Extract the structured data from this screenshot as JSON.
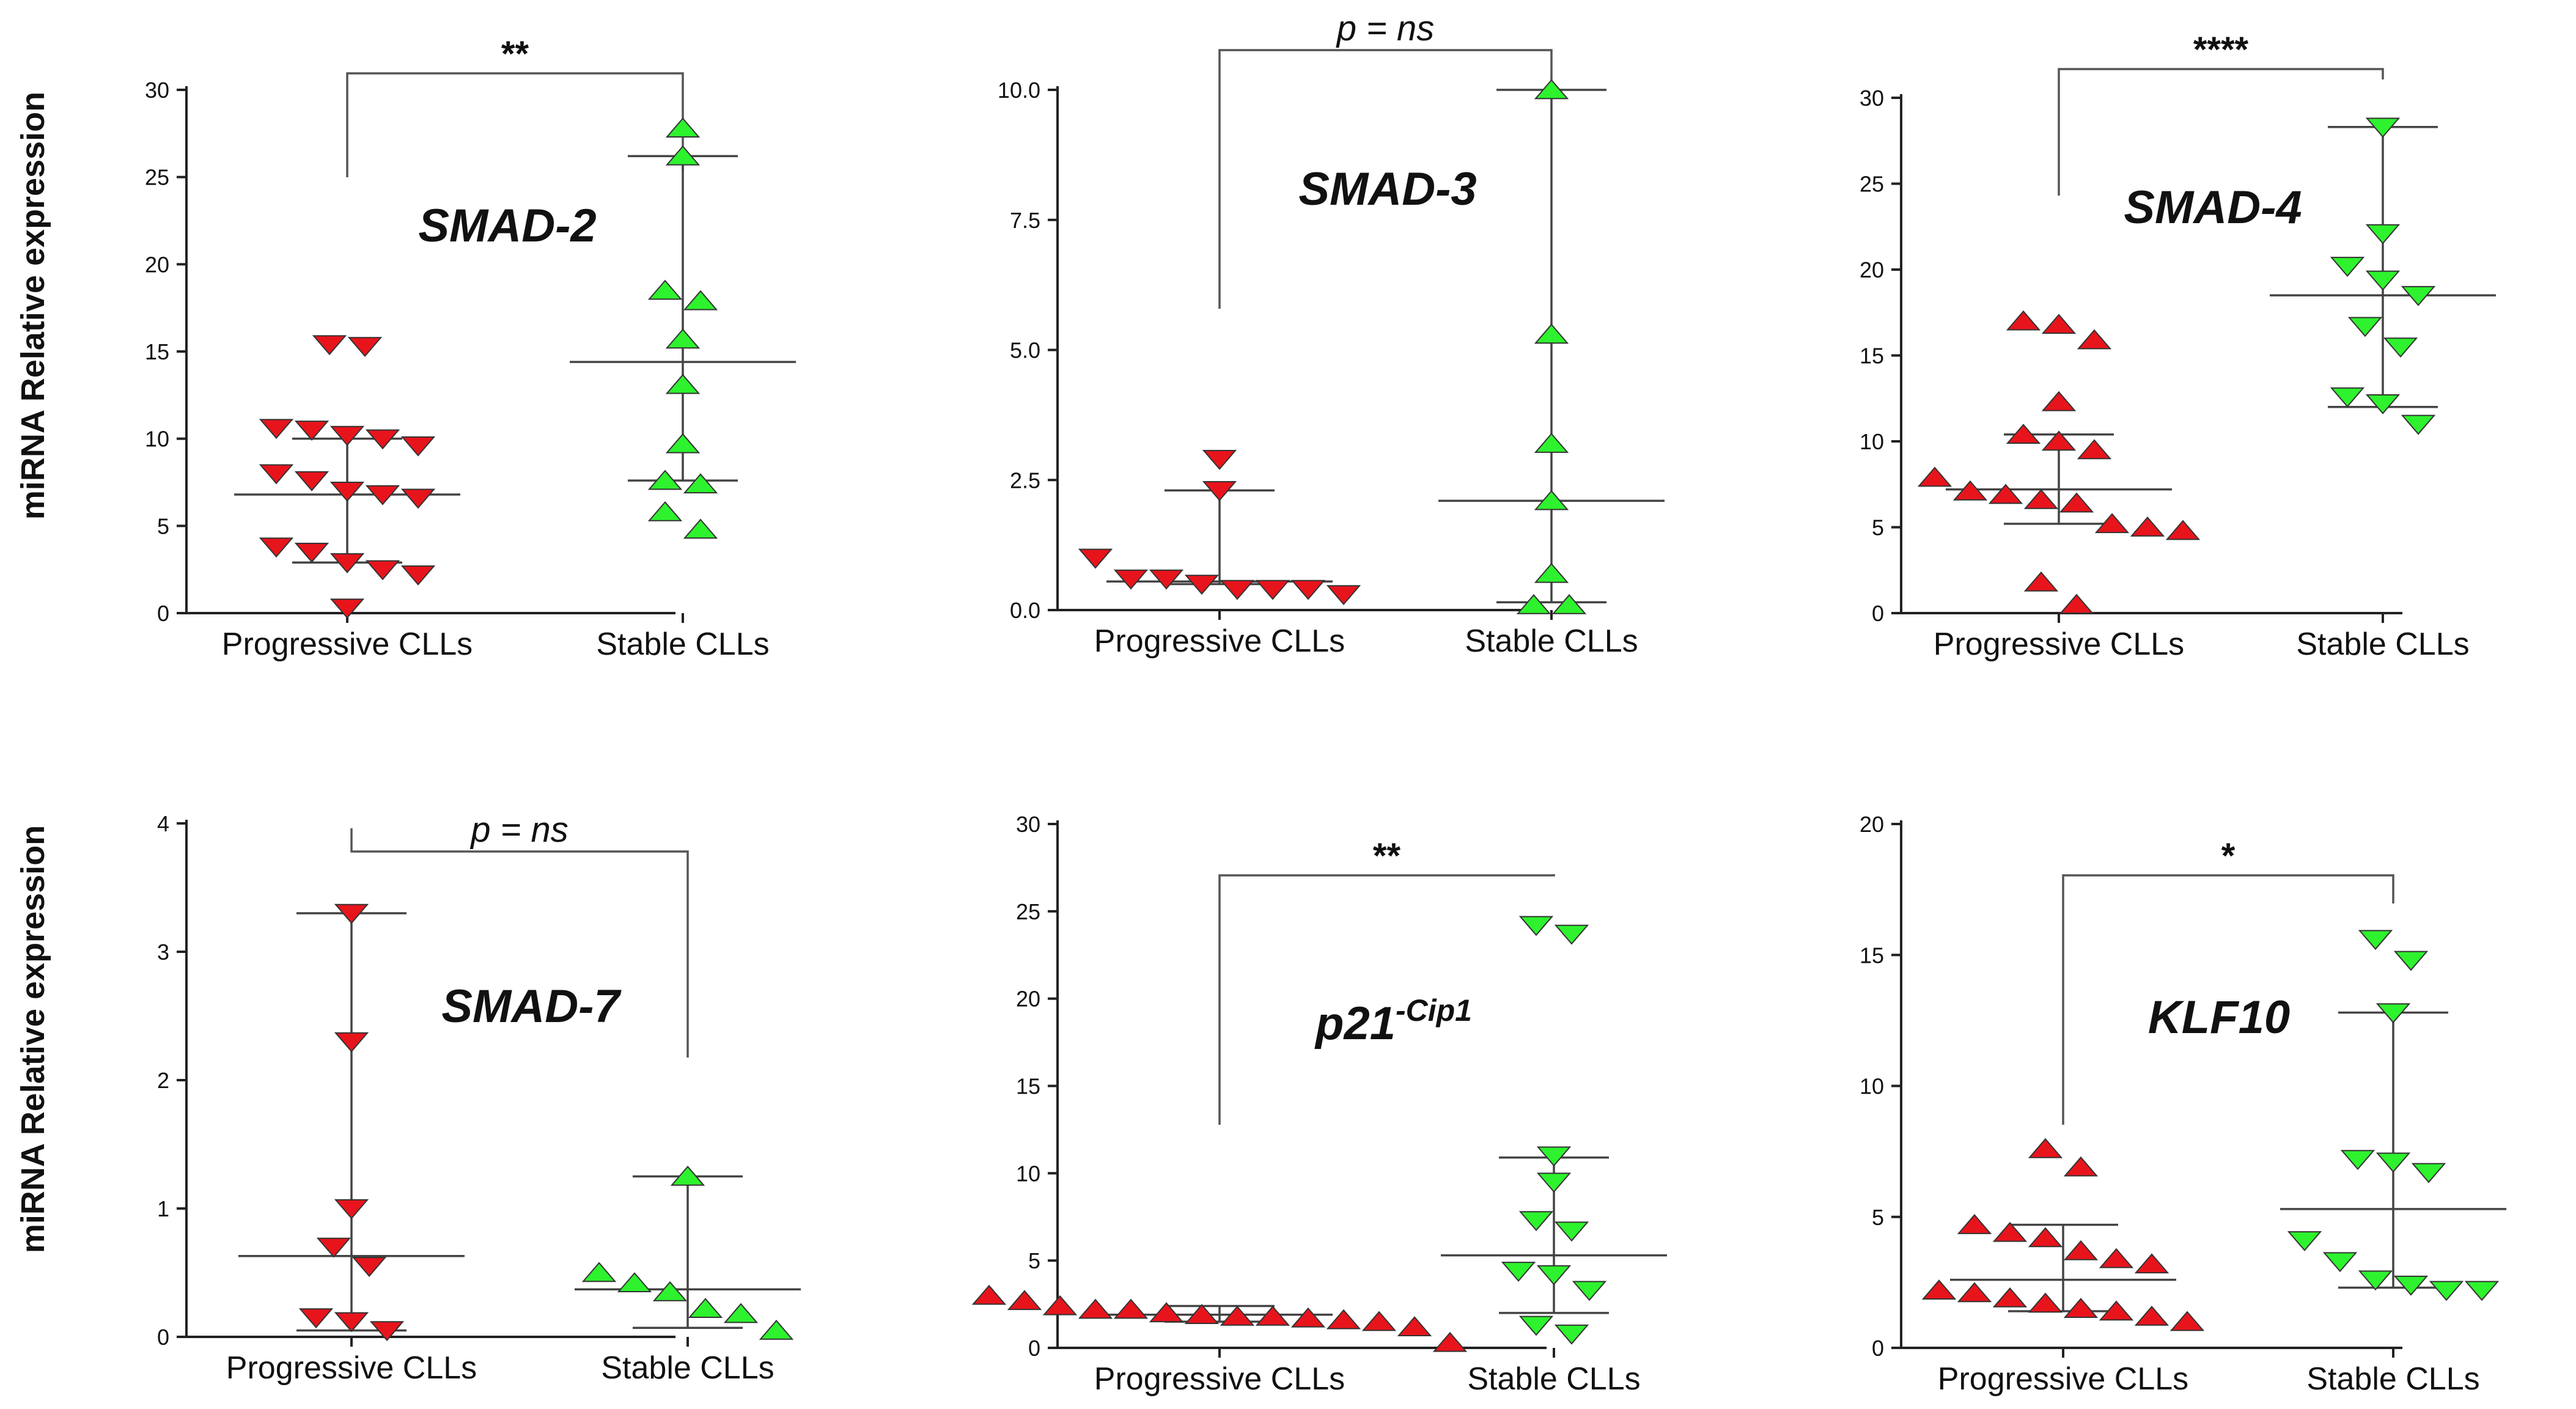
{
  "y_axis_label": "miRNA Relative expression",
  "colors": {
    "progressive": "#e8141c",
    "stable": "#2ef22e"
  },
  "chart_data": [
    {
      "type": "scatter",
      "title": "SMAD-2",
      "categories": [
        "Progressive CLLs",
        "Stable CLLs"
      ],
      "ylim": [
        0,
        30
      ],
      "yticks": [
        0,
        5,
        10,
        15,
        20,
        25,
        30
      ],
      "significance": "**",
      "series": [
        {
          "name": "Progressive CLLs",
          "marker": "down",
          "values": [
            15.4,
            15.3,
            10.6,
            10.5,
            10.2,
            10.0,
            9.6,
            8.0,
            7.6,
            7.0,
            6.8,
            6.6,
            3.8,
            3.5,
            2.9,
            2.5,
            2.2,
            0.3
          ],
          "median": 6.8,
          "q1": 2.9,
          "q3": 10.0
        },
        {
          "name": "Stable CLLs",
          "marker": "up",
          "values": [
            27.8,
            26.2,
            18.5,
            17.9,
            15.7,
            13.1,
            9.7,
            7.6,
            7.4,
            5.8,
            4.8
          ],
          "median": 14.4,
          "q1": 7.6,
          "q3": 26.2
        }
      ]
    },
    {
      "type": "scatter",
      "title": "SMAD-3",
      "categories": [
        "Progressive CLLs",
        "Stable CLLs"
      ],
      "ylim": [
        0,
        10
      ],
      "yticks": [
        "0.0",
        "2.5",
        "5.0",
        "7.5",
        "10.0"
      ],
      "significance_prefix": "p = ",
      "significance_italic": "ns",
      "series": [
        {
          "name": "Progressive CLLs",
          "marker": "down",
          "values": [
            2.9,
            2.3,
            1.0,
            0.6,
            0.6,
            0.5,
            0.4,
            0.4,
            0.4,
            0.3
          ],
          "median": 0.55,
          "q1": 0.5,
          "q3": 2.3
        },
        {
          "name": "Stable CLLs",
          "marker": "up",
          "values": [
            10.0,
            5.3,
            3.2,
            2.1,
            0.7,
            0.1,
            0.1
          ],
          "median": 2.1,
          "q1": 0.15,
          "q3": 10.0
        }
      ]
    },
    {
      "type": "scatter",
      "title": "SMAD-4",
      "categories": [
        "Progressive CLLs",
        "Stable CLLs"
      ],
      "ylim": [
        0,
        30
      ],
      "yticks": [
        0,
        5,
        10,
        15,
        20,
        25,
        30
      ],
      "significance": "****",
      "series": [
        {
          "name": "Progressive CLLs",
          "marker": "up",
          "values": [
            17.0,
            16.8,
            15.9,
            12.3,
            10.4,
            10.0,
            9.5,
            7.9,
            7.1,
            6.9,
            6.6,
            6.4,
            5.2,
            5.0,
            4.8,
            1.8,
            0.5
          ],
          "median": 7.2,
          "q1": 5.2,
          "q3": 10.4
        },
        {
          "name": "Stable CLLs",
          "marker": "down",
          "values": [
            28.3,
            22.1,
            20.2,
            19.4,
            18.5,
            16.7,
            15.5,
            12.6,
            12.2,
            11.0
          ],
          "median": 18.5,
          "q1": 12.0,
          "q3": 28.3
        }
      ]
    },
    {
      "type": "scatter",
      "title": "SMAD-7",
      "categories": [
        "Progressive CLLs",
        "Stable CLLs"
      ],
      "ylim": [
        0,
        4
      ],
      "yticks": [
        0,
        1,
        2,
        3,
        4
      ],
      "significance_prefix": "p = ",
      "significance_italic": "ns",
      "series": [
        {
          "name": "Progressive CLLs",
          "marker": "down",
          "values": [
            3.3,
            2.3,
            1.0,
            0.7,
            0.55,
            0.15,
            0.12,
            0.05
          ],
          "median": 0.63,
          "q1": 0.05,
          "q3": 3.3
        },
        {
          "name": "Stable CLLs",
          "marker": "up",
          "values": [
            1.25,
            0.5,
            0.42,
            0.35,
            0.22,
            0.18,
            0.05
          ],
          "median": 0.37,
          "q1": 0.07,
          "q3": 1.25
        }
      ]
    },
    {
      "type": "scatter",
      "title": "p21",
      "title_superscript": "-Cip1",
      "categories": [
        "Progressive CLLs",
        "Stable CLLs"
      ],
      "ylim": [
        0,
        30
      ],
      "yticks": [
        0,
        5,
        10,
        15,
        20,
        25,
        30
      ],
      "significance": "**",
      "series": [
        {
          "name": "Progressive CLLs",
          "marker": "up",
          "values": [
            3.0,
            2.7,
            2.4,
            2.2,
            2.2,
            2.0,
            1.9,
            1.8,
            1.8,
            1.7,
            1.6,
            1.5,
            1.2,
            0.3
          ],
          "median": 1.9,
          "q1": 1.5,
          "q3": 2.4
        },
        {
          "name": "Stable CLLs",
          "marker": "down",
          "values": [
            24.2,
            23.7,
            11.0,
            9.5,
            7.3,
            6.7,
            4.4,
            4.2,
            3.3,
            1.3,
            0.8
          ],
          "median": 5.3,
          "q1": 2.0,
          "q3": 10.9
        }
      ]
    },
    {
      "type": "scatter",
      "title": "KLF10",
      "categories": [
        "Progressive CLLs",
        "Stable CLLs"
      ],
      "ylim": [
        0,
        20
      ],
      "yticks": [
        0,
        5,
        10,
        15,
        20
      ],
      "significance": "*",
      "series": [
        {
          "name": "Progressive CLLs",
          "marker": "up",
          "values": [
            7.6,
            6.9,
            4.7,
            4.4,
            4.2,
            3.7,
            3.4,
            3.2,
            2.2,
            2.1,
            1.9,
            1.7,
            1.5,
            1.4,
            1.2,
            1.0
          ],
          "median": 2.6,
          "q1": 1.4,
          "q3": 4.7
        },
        {
          "name": "Stable CLLs",
          "marker": "down",
          "values": [
            15.6,
            14.8,
            12.8,
            7.2,
            7.1,
            6.7,
            4.1,
            3.3,
            2.6,
            2.4,
            2.2,
            2.2
          ],
          "median": 5.3,
          "q1": 2.3,
          "q3": 12.8
        }
      ]
    }
  ]
}
